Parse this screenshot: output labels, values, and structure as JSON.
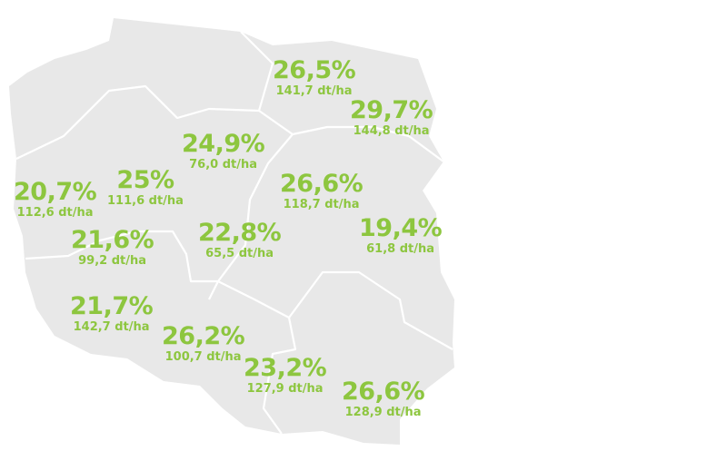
{
  "colors": {
    "land": "#e8e8e8",
    "border": "#ffffff",
    "label": "#8dc63f",
    "background": "#ffffff"
  },
  "regions": [
    {
      "id": "north-east",
      "pct": "26,5%",
      "yield": "141,7 dt/ha"
    },
    {
      "id": "east-top",
      "pct": "29,7%",
      "yield": "144,8 dt/ha"
    },
    {
      "id": "north-central",
      "pct": "24,9%",
      "yield": "76,0 dt/ha"
    },
    {
      "id": "north-west",
      "pct": "25%",
      "yield": "111,6 dt/ha"
    },
    {
      "id": "west-far",
      "pct": "20,7%",
      "yield": "112,6 dt/ha"
    },
    {
      "id": "central-east",
      "pct": "26,6%",
      "yield": "118,7 dt/ha"
    },
    {
      "id": "east",
      "pct": "19,4%",
      "yield": "61,8 dt/ha"
    },
    {
      "id": "central",
      "pct": "22,8%",
      "yield": "65,5 dt/ha"
    },
    {
      "id": "west",
      "pct": "21,6%",
      "yield": "99,2 dt/ha"
    },
    {
      "id": "south-west",
      "pct": "21,7%",
      "yield": "142,7 dt/ha"
    },
    {
      "id": "south-central",
      "pct": "26,2%",
      "yield": "100,7 dt/ha"
    },
    {
      "id": "south",
      "pct": "23,2%",
      "yield": "127,9 dt/ha"
    },
    {
      "id": "south-east",
      "pct": "26,6%",
      "yield": "128,9 dt/ha"
    }
  ]
}
